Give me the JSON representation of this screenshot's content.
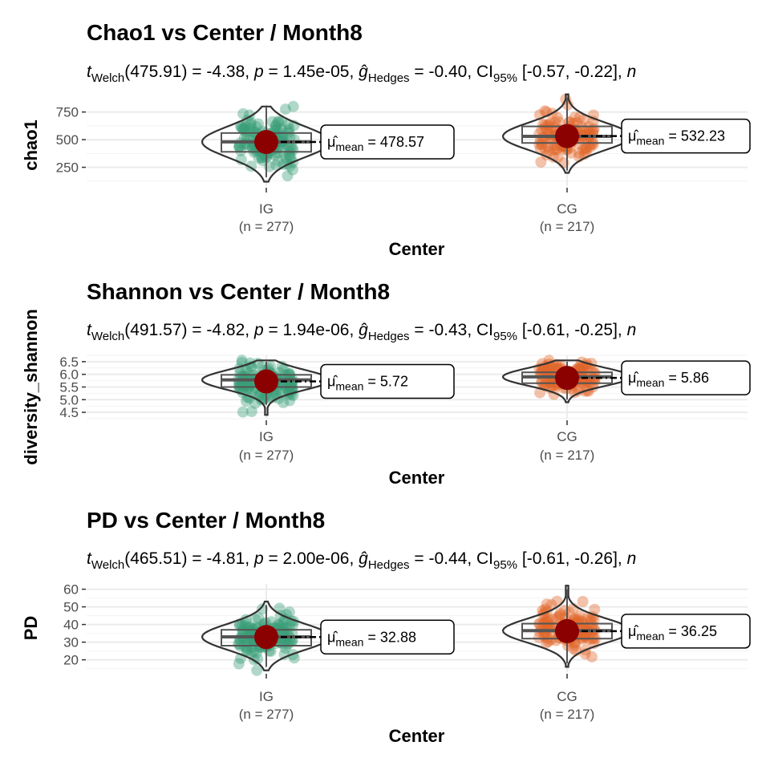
{
  "chart_data": [
    {
      "type": "violin",
      "title": "Chao1 vs Center / Month8",
      "subtitle": {
        "t_sub": "Welch",
        "df": "(475.91)",
        "t_val": " = -4.38, ",
        "p_label": "p",
        "p_val": " = 1.45e-05, ",
        "g_sub": "Hedges",
        "g_val": " = -0.40, ",
        "ci_prefix": "CI",
        "ci_sub": "95%",
        "ci_val": " [-0.57, -0.22], ",
        "trail": "n"
      },
      "ylabel": "chao1",
      "xlabel": "Center",
      "ylim": [
        80,
        820
      ],
      "yticks": [
        {
          "v": 250,
          "label": "250"
        },
        {
          "v": 500,
          "label": "500"
        },
        {
          "v": 750,
          "label": "750"
        }
      ],
      "groups": [
        {
          "name": "IG",
          "n_label": "(n = 277)",
          "color": "#3a9e78",
          "mean": 478.57,
          "q1": 390,
          "median": 480,
          "q3": 560,
          "whisker_low": 160,
          "whisker_high": 790,
          "min": 120,
          "max": 800,
          "mean_label_sub": "mean",
          "mean_label_val": " = 478.57"
        },
        {
          "name": "CG",
          "n_label": "(n = 217)",
          "color": "#e0662a",
          "mean": 532.23,
          "q1": 470,
          "median": 530,
          "q3": 620,
          "whisker_low": 220,
          "whisker_high": 880,
          "min": 200,
          "max": 910,
          "mean_label_sub": "mean",
          "mean_label_val": " = 532.23"
        }
      ]
    },
    {
      "type": "violin",
      "title": "Shannon  vs Center / Month8",
      "subtitle": {
        "t_sub": "Welch",
        "df": "(491.57)",
        "t_val": " = -4.82, ",
        "p_label": "p",
        "p_val": " = 1.94e-06, ",
        "g_sub": "Hedges",
        "g_val": " = -0.43, ",
        "ci_prefix": "CI",
        "ci_sub": "95%",
        "ci_val": " [-0.61, -0.25], ",
        "trail": "n"
      },
      "ylabel": "diversity_shannon",
      "xlabel": "Center",
      "ylim": [
        4.25,
        6.75
      ],
      "yticks": [
        {
          "v": 4.5,
          "label": "4.5"
        },
        {
          "v": 5.0,
          "label": "5.0"
        },
        {
          "v": 5.5,
          "label": "5.5"
        },
        {
          "v": 6.0,
          "label": "6.0"
        },
        {
          "v": 6.5,
          "label": "6.5"
        }
      ],
      "groups": [
        {
          "name": "IG",
          "n_label": "(n = 277)",
          "color": "#3a9e78",
          "mean": 5.72,
          "q1": 5.5,
          "median": 5.78,
          "q3": 5.98,
          "whisker_low": 4.8,
          "whisker_high": 6.5,
          "min": 4.4,
          "max": 6.55,
          "mean_label_sub": "mean",
          "mean_label_val": " = 5.72"
        },
        {
          "name": "CG",
          "n_label": "(n = 217)",
          "color": "#e0662a",
          "mean": 5.86,
          "q1": 5.65,
          "median": 5.9,
          "q3": 6.08,
          "whisker_low": 5.0,
          "whisker_high": 6.5,
          "min": 4.9,
          "max": 6.55,
          "mean_label_sub": "mean",
          "mean_label_val": " = 5.86"
        }
      ]
    },
    {
      "type": "violin",
      "title": "PD  vs Center / Month8",
      "subtitle": {
        "t_sub": "Welch",
        "df": "(465.51)",
        "t_val": " = -4.81, ",
        "p_label": "p",
        "p_val": " = 2.00e-06, ",
        "g_sub": "Hedges",
        "g_val": " = -0.44, ",
        "ci_prefix": "CI",
        "ci_sub": "95%",
        "ci_val": " [-0.61, -0.26], ",
        "trail": "n"
      },
      "ylabel": "PD",
      "xlabel": "Center",
      "ylim": [
        13,
        63
      ],
      "yticks": [
        {
          "v": 20,
          "label": "20"
        },
        {
          "v": 30,
          "label": "30"
        },
        {
          "v": 40,
          "label": "40"
        },
        {
          "v": 50,
          "label": "50"
        },
        {
          "v": 60,
          "label": "60"
        }
      ],
      "groups": [
        {
          "name": "IG",
          "n_label": "(n = 277)",
          "color": "#3a9e78",
          "mean": 32.88,
          "q1": 28,
          "median": 33,
          "q3": 37,
          "whisker_low": 16,
          "whisker_high": 51,
          "min": 14,
          "max": 53,
          "mean_label_sub": "mean",
          "mean_label_val": " = 32.88"
        },
        {
          "name": "CG",
          "n_label": "(n = 217)",
          "color": "#e0662a",
          "mean": 36.25,
          "q1": 32,
          "median": 36.5,
          "q3": 40.5,
          "whisker_low": 18,
          "whisker_high": 60,
          "min": 16,
          "max": 62,
          "mean_label_sub": "mean",
          "mean_label_val": " = 36.25"
        }
      ]
    }
  ],
  "colors": {
    "mean_point": "#8b0000",
    "grid": "#ebebeb",
    "outline": "#333333"
  }
}
